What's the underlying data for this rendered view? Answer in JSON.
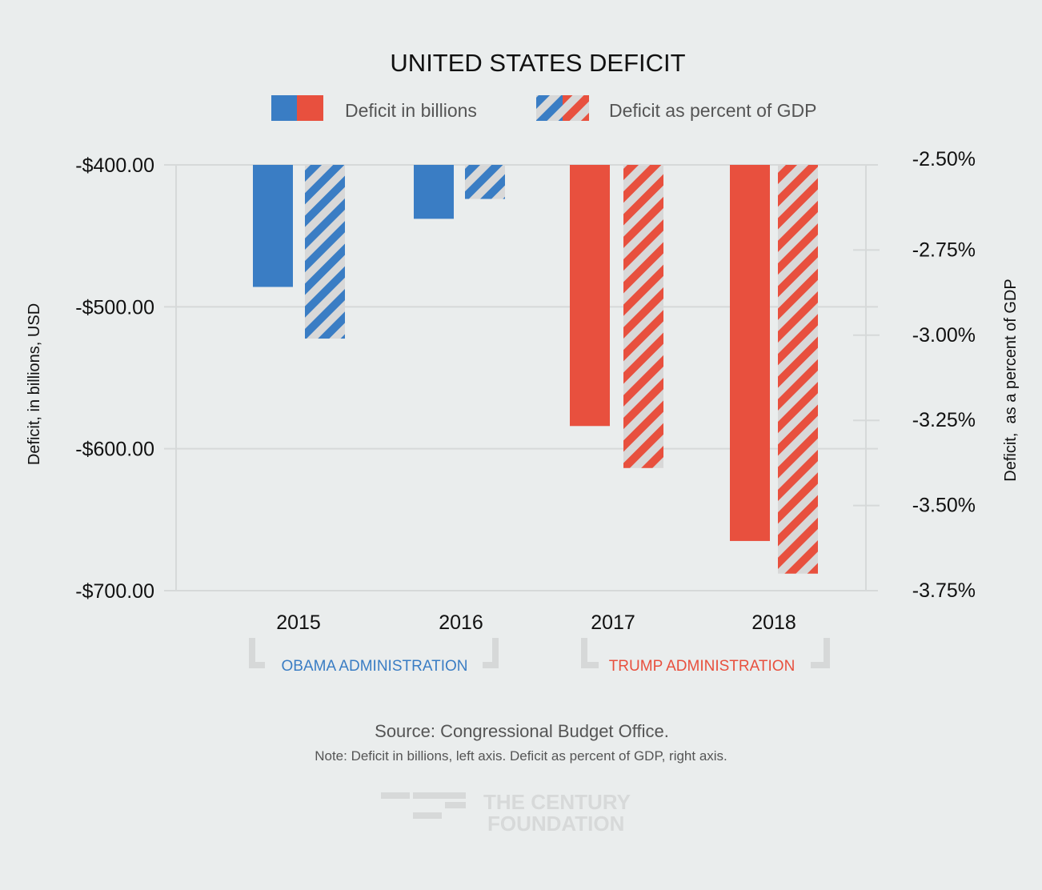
{
  "chart_data": {
    "type": "bar",
    "title": "UNITED STATES DEFICIT",
    "categories": [
      "2015",
      "2016",
      "2017",
      "2018"
    ],
    "legend": [
      "Deficit in billions",
      "Deficit as percent of GDP"
    ],
    "legend_placement": "top-center",
    "ylabel": "Deficit, in billions, USD",
    "y2label": "Deficit,  as a percent of GDP",
    "ylim": [
      -700,
      -400
    ],
    "y2lim": [
      -3.75,
      -2.5
    ],
    "yticks": [
      "-$400.00",
      "-$500.00",
      "-$600.00",
      "-$700.00"
    ],
    "ytick_values": [
      -400,
      -500,
      -600,
      -700
    ],
    "y2ticks": [
      "-2.50%",
      "-2.75%",
      "-3.00%",
      "-3.25%",
      "-3.50%",
      "-3.75%"
    ],
    "y2tick_values": [
      -2.5,
      -2.75,
      -3.0,
      -3.25,
      -3.5,
      -3.75
    ],
    "series": [
      {
        "name": "Deficit in billions",
        "axis": "left",
        "values": [
          -486,
          -438,
          -584,
          -665
        ]
      },
      {
        "name": "Deficit as percent of GDP",
        "axis": "right",
        "values": [
          -3.01,
          -2.6,
          -3.39,
          -3.7
        ]
      }
    ],
    "bar_colors": [
      "#3a7dc4",
      "#3a7dc4",
      "#e8503e",
      "#e8503e"
    ],
    "grid": true,
    "groups": [
      {
        "label": "OBAMA ADMINISTRATION",
        "color": "#3a7dc4"
      },
      {
        "label": "TRUMP ADMINISTRATION",
        "color": "#e8503e"
      }
    ]
  },
  "footer": {
    "source": "Source: Congressional Budget Office.",
    "note": "Note: Deficit in billions, left axis. Deficit as percent of GDP, right axis."
  },
  "logo": {
    "line1": "THE CENTURY",
    "line2": "FOUNDATION"
  },
  "colors": {
    "blue": "#3a7dc4",
    "red": "#e8503e",
    "stripe": "#d8d8d8",
    "grid": "#d6d9d9",
    "background": "#eaeded"
  }
}
